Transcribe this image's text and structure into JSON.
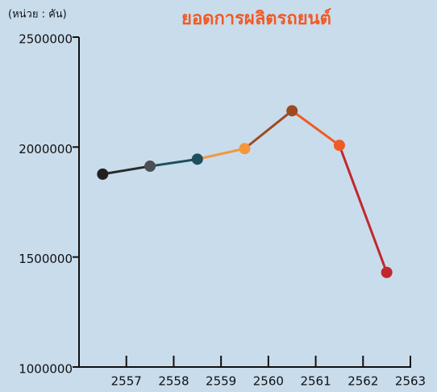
{
  "chart_data": {
    "type": "line",
    "title": "ยอดการผลิตรถยนต์",
    "unit_label": "(หน่วย : คัน)",
    "x": [
      2556.5,
      2557.5,
      2558.5,
      2559.5,
      2560.5,
      2561.5,
      2562.5
    ],
    "values": [
      1877000,
      1913000,
      1945000,
      1993000,
      2165000,
      2008000,
      1430000
    ],
    "point_colors": [
      "#231f20",
      "#4a5055",
      "#1e4f5e",
      "#f4973b",
      "#9c4a22",
      "#f15a24",
      "#c1272d"
    ],
    "segment_colors": [
      "#2a2a2a",
      "#1e4f5e",
      "#f4973b",
      "#9c4a22",
      "#f15a24",
      "#c1272d"
    ],
    "xlim": [
      2556,
      2563
    ],
    "xticks": [
      2557,
      2558,
      2559,
      2560,
      2561,
      2562,
      2563
    ],
    "ylim": [
      1000000,
      2500000
    ],
    "yticks": [
      1000000,
      1500000,
      2000000,
      2500000
    ],
    "grid": false
  }
}
